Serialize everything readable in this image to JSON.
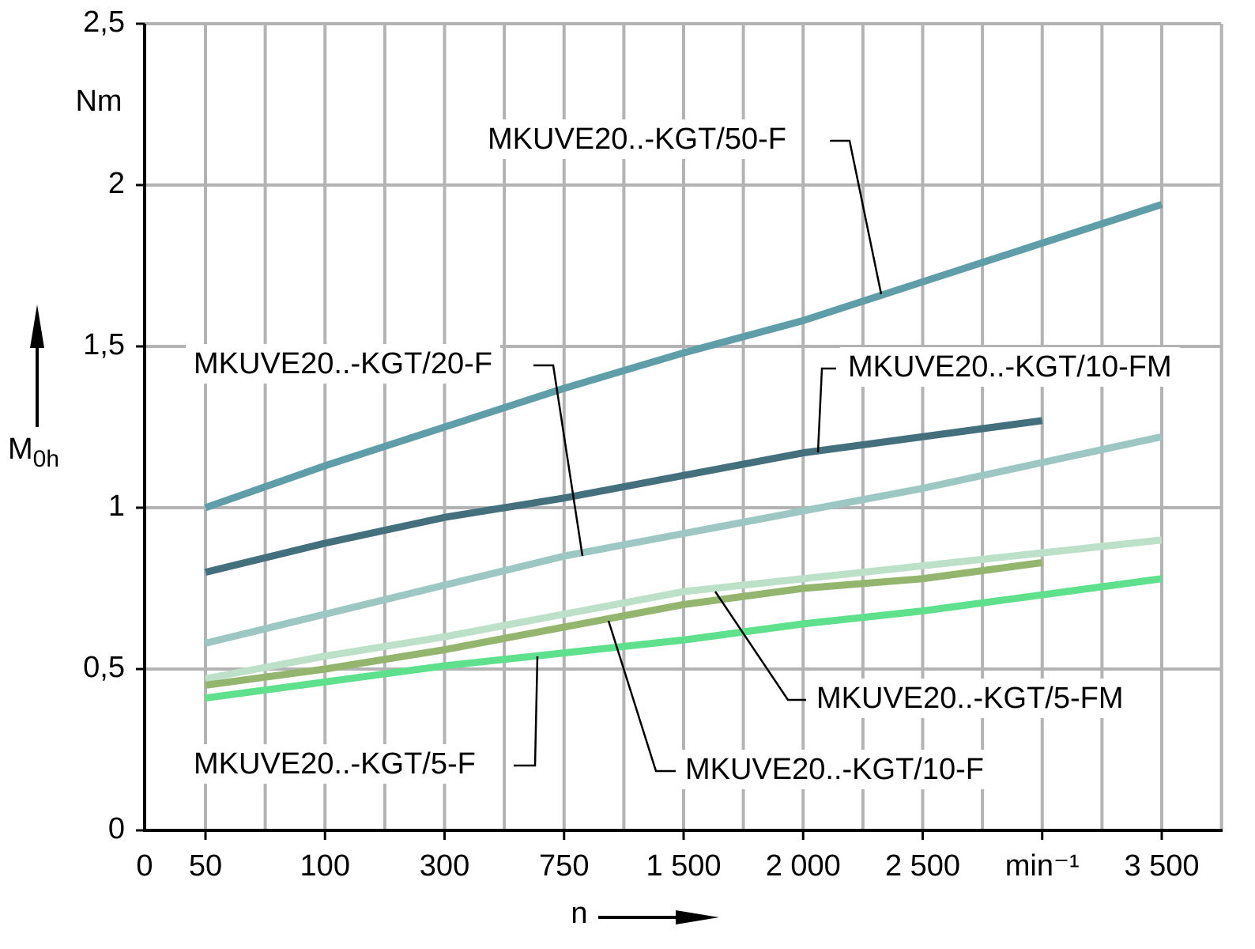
{
  "chart_data": {
    "type": "line",
    "ylabel": {
      "main": "M",
      "sub": "0h"
    },
    "yunit": "Nm",
    "xlabel": "n",
    "xunit": "min⁻¹",
    "x_origin_label": "0",
    "categories": [
      "50",
      "100",
      "300",
      "750",
      "1 500",
      "2 000",
      "2 500",
      null,
      "3 500"
    ],
    "ylim": [
      0,
      2.5
    ],
    "yticks": [
      0,
      {
        "value": 0.5,
        "label": "0,5"
      },
      1,
      {
        "value": 1.5,
        "label": "1,5"
      },
      2,
      {
        "value": 2.5,
        "label": "2,5"
      }
    ],
    "grid": true,
    "series": [
      {
        "name": "MKUVE20..-KGT/50-F",
        "color": "#5f9ea8",
        "values": [
          1.0,
          1.13,
          1.25,
          1.37,
          1.48,
          1.58,
          1.7,
          1.82,
          1.94
        ]
      },
      {
        "name": "MKUVE20..-KGT/10-FM",
        "color": "#44707e",
        "values": [
          0.8,
          0.89,
          0.97,
          1.03,
          1.1,
          1.17,
          1.22,
          1.27,
          null
        ]
      },
      {
        "name": "MKUVE20..-KGT/20-F",
        "color": "#9cc7c3",
        "values": [
          0.58,
          0.67,
          0.76,
          0.85,
          0.92,
          0.99,
          1.06,
          1.14,
          1.22
        ]
      },
      {
        "name": "MKUVE20..-KGT/5-FM",
        "color": "#bde0c8",
        "values": [
          0.47,
          0.54,
          0.6,
          0.67,
          0.74,
          0.78,
          0.82,
          0.86,
          0.9
        ]
      },
      {
        "name": "MKUVE20..-KGT/10-F",
        "color": "#93b56e",
        "values": [
          0.45,
          0.5,
          0.56,
          0.63,
          0.7,
          0.75,
          0.78,
          0.83,
          null
        ]
      },
      {
        "name": "MKUVE20..-KGT/5-F",
        "color": "#5fe08c",
        "values": [
          0.41,
          0.46,
          0.51,
          0.55,
          0.59,
          0.64,
          0.68,
          0.73,
          0.78
        ]
      }
    ]
  }
}
